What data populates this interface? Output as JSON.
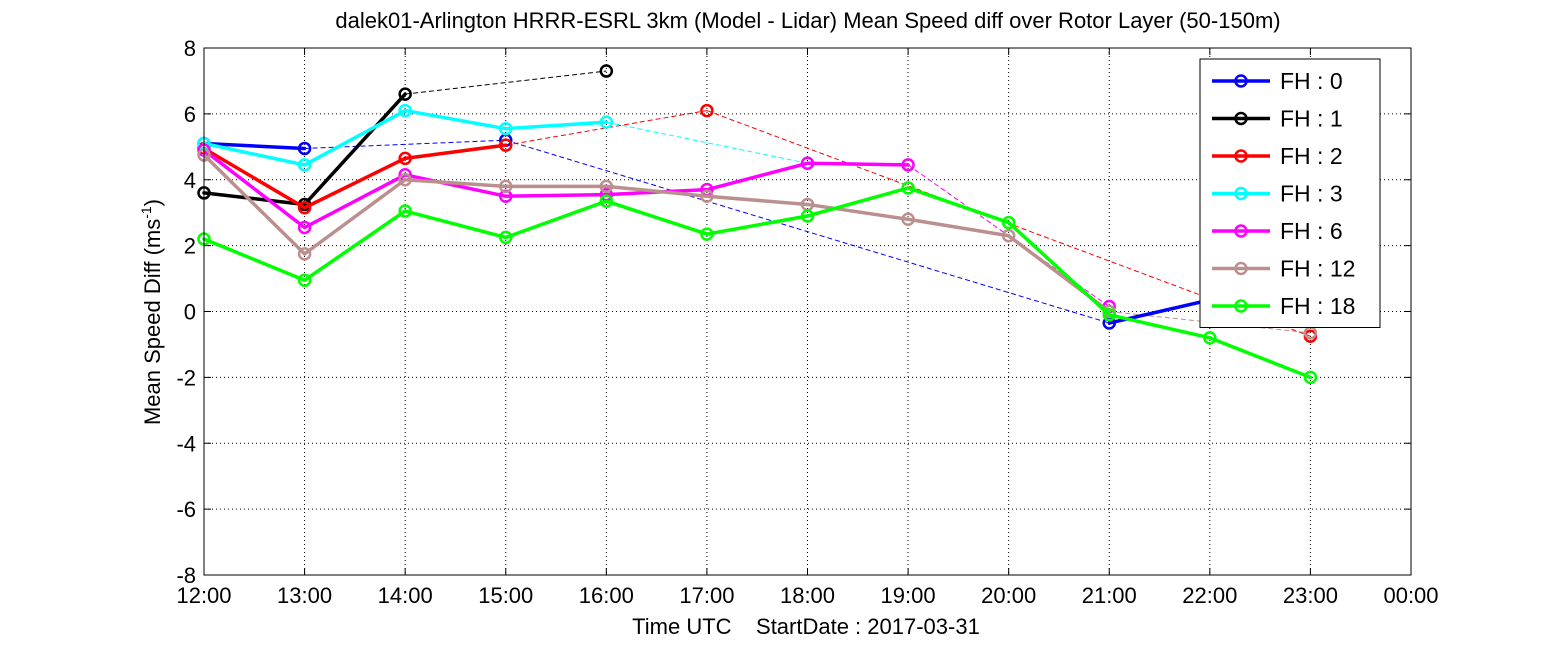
{
  "chart_data": {
    "type": "line",
    "title": "dalek01-Arlington HRRR-ESRL 3km (Model - Lidar) Mean Speed diff over Rotor Layer (50-150m)",
    "xlabel": "Time UTC    StartDate : 2017-03-31",
    "ylabel_main": "Mean Speed Diff (ms",
    "ylabel_sup": "-1",
    "ylabel_close": ")",
    "x_ticks": [
      "12:00",
      "13:00",
      "14:00",
      "15:00",
      "16:00",
      "17:00",
      "18:00",
      "19:00",
      "20:00",
      "21:00",
      "22:00",
      "23:00",
      "00:00"
    ],
    "xlim": [
      12,
      24
    ],
    "ylim": [
      -8,
      8
    ],
    "y_ticks": [
      -8,
      -6,
      -4,
      -2,
      0,
      2,
      4,
      6,
      8
    ],
    "grid": true,
    "legend_position": "top-right",
    "series": [
      {
        "name": "FH : 0",
        "color": "#0000ff",
        "x": [
          12,
          13,
          15,
          21,
          22
        ],
        "y": [
          5.1,
          4.95,
          5.2,
          -0.35,
          0.35
        ]
      },
      {
        "name": "FH : 1",
        "color": "#000000",
        "x": [
          12,
          13,
          14,
          16
        ],
        "y": [
          3.6,
          3.25,
          6.6,
          7.3
        ]
      },
      {
        "name": "FH : 2",
        "color": "#ff0000",
        "x": [
          12,
          13,
          14,
          15,
          17,
          23
        ],
        "y": [
          4.95,
          3.15,
          4.65,
          5.05,
          6.1,
          -0.75
        ]
      },
      {
        "name": "FH : 3",
        "color": "#00ffff",
        "x": [
          12,
          13,
          14,
          15,
          16,
          18
        ],
        "y": [
          5.1,
          4.45,
          6.1,
          5.55,
          5.75,
          4.5
        ]
      },
      {
        "name": "FH : 6",
        "color": "#ff00ff",
        "x": [
          12,
          13,
          14,
          15,
          16,
          17,
          18,
          19,
          21
        ],
        "y": [
          4.9,
          2.55,
          4.15,
          3.5,
          3.55,
          3.7,
          4.5,
          4.45,
          0.15
        ]
      },
      {
        "name": "FH : 12",
        "color": "#bc8f8f",
        "x": [
          12,
          13,
          14,
          15,
          16,
          17,
          18,
          19,
          20,
          21,
          23
        ],
        "y": [
          4.75,
          1.75,
          4.0,
          3.8,
          3.8,
          3.5,
          3.25,
          2.8,
          2.3,
          0.0,
          -0.65
        ]
      },
      {
        "name": "FH : 18",
        "color": "#00ff00",
        "x": [
          12,
          13,
          14,
          15,
          16,
          17,
          18,
          19,
          20,
          21,
          22,
          23
        ],
        "y": [
          2.2,
          0.95,
          3.05,
          2.25,
          3.35,
          2.35,
          2.9,
          3.75,
          2.7,
          -0.1,
          -0.8,
          -2.0
        ]
      }
    ]
  }
}
